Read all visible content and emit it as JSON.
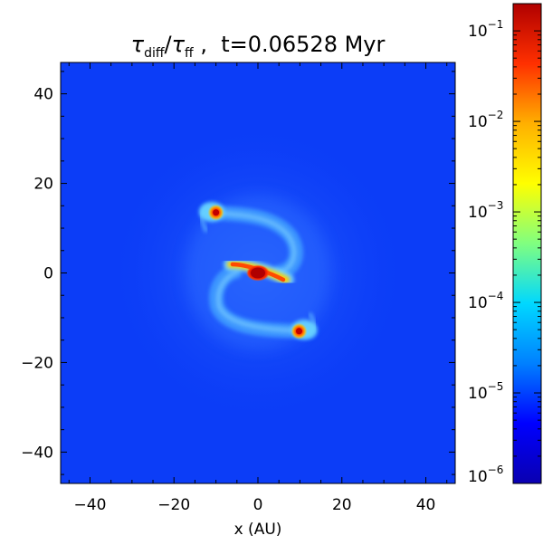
{
  "chart_data": {
    "type": "heatmap",
    "title": {
      "main": "τ",
      "main_sub": "diff",
      "slash": "/",
      "denom": "τ",
      "denom_sub": "ff",
      "suffix": " ,  t=0.06528 Myr"
    },
    "xlabel": "x (AU)",
    "ylabel": "",
    "xlim": [
      -47,
      47
    ],
    "ylim": [
      -47,
      47
    ],
    "xticks": [
      -40,
      -20,
      0,
      20,
      40
    ],
    "yticks": [
      -40,
      -20,
      0,
      20,
      40
    ],
    "xtick_labels": [
      "−40",
      "−20",
      "0",
      "20",
      "40"
    ],
    "ytick_labels": [
      "−40",
      "−20",
      "0",
      "20",
      "40"
    ],
    "colorbar": {
      "scale": "log",
      "range": [
        1e-06,
        0.2
      ],
      "ticks": [
        {
          "value": 0.1,
          "base": "10",
          "exp": "−1"
        },
        {
          "value": 0.01,
          "base": "10",
          "exp": "−2"
        },
        {
          "value": 0.001,
          "base": "10",
          "exp": "−3"
        },
        {
          "value": 0.0001,
          "base": "10",
          "exp": "−4"
        },
        {
          "value": 1e-05,
          "base": "10",
          "exp": "−5"
        },
        {
          "value": 1e-06,
          "base": "10",
          "exp": "−6"
        }
      ],
      "colors": [
        "#0a00b0",
        "#0000ff",
        "#0080ff",
        "#00d8ff",
        "#80ff80",
        "#ffff00",
        "#ffb000",
        "#ff3000",
        "#b00000"
      ]
    },
    "background_value": 3e-06,
    "features": [
      {
        "name": "central core",
        "x": 0,
        "y": 0,
        "value": 0.12
      },
      {
        "name": "clump upper-left",
        "x": -10,
        "y": 13.5,
        "value": 0.04
      },
      {
        "name": "clump lower-right",
        "x": 9.8,
        "y": -13,
        "value": 0.04
      },
      {
        "name": "spiral arms",
        "value": 6e-05
      }
    ]
  },
  "colors": {
    "field_bg": "#0c3df7",
    "halo": "#1a5cff",
    "arm": "#3fa2ff",
    "arm_core": "#6fc6ff",
    "bar": "#ff5a10",
    "core": "#c00000",
    "clump": "#e01000"
  }
}
